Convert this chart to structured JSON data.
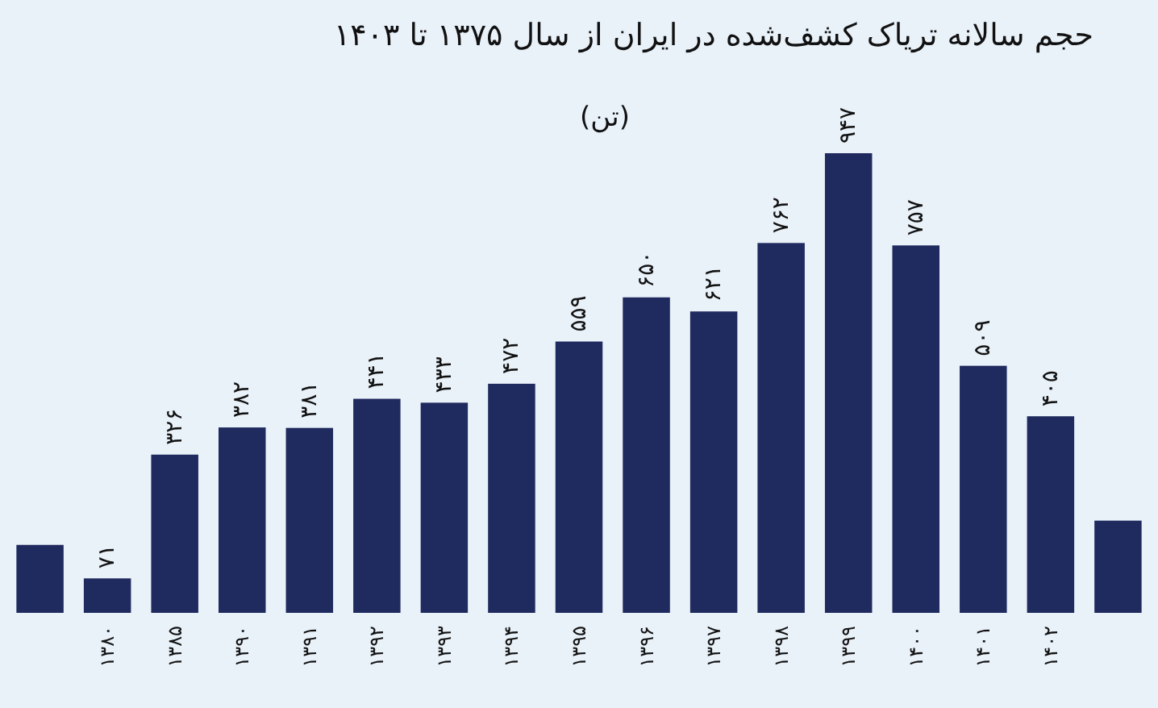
{
  "chart_data": {
    "type": "bar",
    "title": "حجم سالانه تریاک کشف‌شده در ایران از سال ۱۳۷۵ تا ۱۴۰۳",
    "subtitle": "(تن)",
    "categories": [
      null,
      "۱۳۸۰",
      "۱۳۸۵",
      "۱۳۹۰",
      "۱۳۹۱",
      "۱۳۹۲",
      "۱۳۹۳",
      "۱۳۹۴",
      "۱۳۹۵",
      "۱۳۹۶",
      "۱۳۹۷",
      "۱۳۹۸",
      "۱۳۹۹",
      "۱۴۰۰",
      "۱۴۰۱",
      "۱۴۰۲",
      null
    ],
    "values": [
      140,
      71,
      326,
      382,
      381,
      441,
      433,
      472,
      559,
      650,
      621,
      762,
      947,
      757,
      509,
      405,
      190
    ],
    "value_labels": [
      null,
      "۷۱",
      "۳۲۶",
      "۳۸۲",
      "۳۸۱",
      "۴۴۱",
      "۴۳۳",
      "۴۷۲",
      "۵۵۹",
      "۶۵۰",
      "۶۲۱",
      "۷۶۲",
      "۹۴۷",
      "۷۵۷",
      "۵۰۹",
      "۴۰۵",
      null
    ],
    "color": "#1f2a5e"
  }
}
